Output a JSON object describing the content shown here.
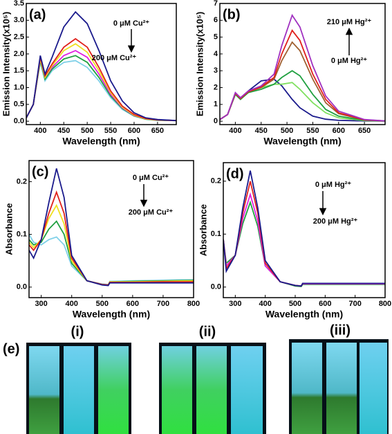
{
  "chart_data": [
    {
      "type": "line",
      "panel_label": "(a)",
      "x_label": "Wavelength (nm)",
      "y_label": "Emission Intensity(x10⁵)",
      "annotations": [
        "0 μM Cu²⁺",
        "200 μM Cu²⁺"
      ],
      "x": [
        370,
        385,
        400,
        410,
        425,
        450,
        475,
        500,
        525,
        550,
        575,
        600,
        625,
        650,
        690
      ],
      "xlim": [
        370,
        690
      ],
      "xticks": [
        400,
        450,
        500,
        550,
        600,
        650
      ],
      "ylim": [
        -0.1,
        3.5
      ],
      "yticks": [
        {
          "value": 0,
          "label": "0.0"
        },
        {
          "value": 0.5,
          "label": "0.5"
        },
        {
          "value": 1,
          "label": "1.0"
        },
        {
          "value": 1.5,
          "label": "1.5"
        },
        {
          "value": 2,
          "label": "2.0"
        },
        {
          "value": 2.5,
          "label": "2.5"
        },
        {
          "value": 3,
          "label": "3.0"
        },
        {
          "value": 3.5,
          "label": "3.5"
        }
      ],
      "series": [
        {
          "color": "#7fd0e8",
          "values": [
            0.1,
            0.5,
            1.75,
            1.2,
            1.5,
            1.75,
            1.8,
            1.6,
            1.2,
            0.7,
            0.35,
            0.15,
            0.06,
            0.03,
            0.02
          ]
        },
        {
          "color": "#20a040",
          "values": [
            0.1,
            0.5,
            1.8,
            1.25,
            1.55,
            1.85,
            1.95,
            1.75,
            1.3,
            0.75,
            0.38,
            0.16,
            0.06,
            0.03,
            0.02
          ]
        },
        {
          "color": "#e020e0",
          "values": [
            0.1,
            0.5,
            1.85,
            1.3,
            1.6,
            1.95,
            2.1,
            1.9,
            1.4,
            0.8,
            0.4,
            0.17,
            0.07,
            0.04,
            0.02
          ]
        },
        {
          "color": "#f0e020",
          "values": [
            0.1,
            0.5,
            1.85,
            1.3,
            1.65,
            2.1,
            2.3,
            2.05,
            1.5,
            0.85,
            0.42,
            0.18,
            0.07,
            0.04,
            0.02
          ]
        },
        {
          "color": "#e0201b",
          "values": [
            0.1,
            0.5,
            1.9,
            1.35,
            1.7,
            2.2,
            2.45,
            2.2,
            1.6,
            0.9,
            0.45,
            0.2,
            0.08,
            0.04,
            0.02
          ]
        },
        {
          "color": "#1a1a8c",
          "values": [
            0.1,
            0.5,
            1.95,
            1.4,
            1.9,
            2.8,
            3.25,
            2.9,
            2.1,
            1.2,
            0.6,
            0.25,
            0.1,
            0.05,
            0.02
          ]
        }
      ]
    },
    {
      "type": "line",
      "panel_label": "(b)",
      "x_label": "Wavelength (nm)",
      "y_label": "Emission Intensity(x10⁵)",
      "annotations": [
        "210 μM Hg²⁺",
        "0 μM Hg²⁺"
      ],
      "x": [
        370,
        385,
        400,
        410,
        425,
        450,
        475,
        490,
        510,
        525,
        550,
        575,
        600,
        650,
        690
      ],
      "xlim": [
        370,
        690
      ],
      "xticks": [
        400,
        450,
        500,
        550,
        600,
        650
      ],
      "ylim": [
        -0.2,
        7
      ],
      "yticks": [
        0,
        1,
        2,
        3,
        4,
        5,
        6,
        7
      ],
      "series": [
        {
          "color": "#1a1a8c",
          "values": [
            0.1,
            0.4,
            1.6,
            1.3,
            1.8,
            2.4,
            2.5,
            2.1,
            1.3,
            0.8,
            0.3,
            0.12,
            0.05,
            0.02,
            0.01
          ]
        },
        {
          "color": "#80e060",
          "values": [
            0.1,
            0.4,
            1.6,
            1.3,
            1.75,
            2.0,
            2.2,
            2.2,
            2.3,
            1.9,
            1.1,
            0.5,
            0.2,
            0.04,
            0.01
          ]
        },
        {
          "color": "#20a040",
          "values": [
            0.1,
            0.4,
            1.6,
            1.3,
            1.7,
            1.9,
            2.2,
            2.6,
            3.0,
            2.7,
            1.6,
            0.7,
            0.3,
            0.05,
            0.01
          ]
        },
        {
          "color": "#a06030",
          "values": [
            0.1,
            0.4,
            1.65,
            1.35,
            1.75,
            2.0,
            2.5,
            3.6,
            4.7,
            4.2,
            2.5,
            1.1,
            0.45,
            0.07,
            0.02
          ]
        },
        {
          "color": "#e0201b",
          "values": [
            0.1,
            0.4,
            1.65,
            1.35,
            1.75,
            2.05,
            2.6,
            4.0,
            5.4,
            4.8,
            2.8,
            1.3,
            0.5,
            0.08,
            0.02
          ]
        },
        {
          "color": "#a030c0",
          "values": [
            0.1,
            0.4,
            1.7,
            1.4,
            1.8,
            2.1,
            2.8,
            4.5,
            6.3,
            5.6,
            3.3,
            1.5,
            0.6,
            0.1,
            0.02
          ]
        }
      ]
    },
    {
      "type": "line",
      "panel_label": "(c)",
      "x_label": "Wavelength (nm)",
      "y_label": "Absorbance",
      "annotations": [
        "0 μM Cu²⁺",
        "200 μM Cu²⁺"
      ],
      "x": [
        260,
        275,
        300,
        325,
        350,
        375,
        400,
        450,
        500,
        520,
        525,
        600,
        700,
        800
      ],
      "xlim": [
        260,
        800
      ],
      "xticks": [
        300,
        400,
        500,
        600,
        700,
        800
      ],
      "ylim": [
        -0.02,
        0.24
      ],
      "yticks": [
        {
          "value": 0,
          "label": "0.0"
        },
        {
          "value": 0.1,
          "label": "0.1"
        },
        {
          "value": 0.2,
          "label": "0.2"
        }
      ],
      "series": [
        {
          "color": "#7fd0e8",
          "values": [
            0.1,
            0.085,
            0.08,
            0.09,
            0.095,
            0.08,
            0.04,
            0.012,
            0.006,
            0.005,
            0.011,
            0.012,
            0.013,
            0.014
          ]
        },
        {
          "color": "#20a040",
          "values": [
            0.09,
            0.08,
            0.085,
            0.11,
            0.125,
            0.1,
            0.045,
            0.012,
            0.005,
            0.004,
            0.01,
            0.011,
            0.012,
            0.013
          ]
        },
        {
          "color": "#f0e020",
          "values": [
            0.085,
            0.075,
            0.09,
            0.13,
            0.155,
            0.12,
            0.05,
            0.012,
            0.005,
            0.004,
            0.01,
            0.01,
            0.011,
            0.012
          ]
        },
        {
          "color": "#e0201b",
          "values": [
            0.08,
            0.07,
            0.09,
            0.14,
            0.18,
            0.14,
            0.055,
            0.012,
            0.005,
            0.004,
            0.009,
            0.009,
            0.01,
            0.01
          ]
        },
        {
          "color": "#1a1a8c",
          "values": [
            0.07,
            0.055,
            0.09,
            0.16,
            0.225,
            0.17,
            0.06,
            0.012,
            0.004,
            0.003,
            0.008,
            0.008,
            0.008,
            0.008
          ]
        }
      ]
    },
    {
      "type": "line",
      "panel_label": "(d)",
      "x_label": "Wavelength (nm)",
      "y_label": "Absorbance",
      "annotations": [
        "0 μM Hg²⁺",
        "200 μM Hg²⁺"
      ],
      "x": [
        260,
        270,
        300,
        325,
        350,
        375,
        400,
        450,
        500,
        520,
        525,
        600,
        700,
        800
      ],
      "xlim": [
        260,
        800
      ],
      "xticks": [
        300,
        400,
        500,
        600,
        700,
        800
      ],
      "ylim": [
        -0.02,
        0.235
      ],
      "yticks": [
        {
          "value": 0,
          "label": "0.0"
        },
        {
          "value": 0.1,
          "label": "0.1"
        },
        {
          "value": 0.2,
          "label": "0.2"
        }
      ],
      "series": [
        {
          "color": "#20a040",
          "values": [
            0.09,
            0.045,
            0.06,
            0.12,
            0.16,
            0.115,
            0.04,
            0.01,
            0.002,
            0.001,
            0.005,
            0.005,
            0.005,
            0.005
          ]
        },
        {
          "color": "#e020e0",
          "values": [
            0.09,
            0.04,
            0.06,
            0.13,
            0.175,
            0.125,
            0.04,
            0.01,
            0.003,
            0.002,
            0.006,
            0.006,
            0.006,
            0.006
          ]
        },
        {
          "color": "#e0201b",
          "values": [
            0.09,
            0.035,
            0.06,
            0.14,
            0.2,
            0.14,
            0.045,
            0.01,
            0.003,
            0.002,
            0.007,
            0.007,
            0.007,
            0.007
          ]
        },
        {
          "color": "#1a1a8c",
          "values": [
            0.09,
            0.03,
            0.06,
            0.15,
            0.22,
            0.15,
            0.05,
            0.01,
            0.003,
            0.002,
            0.007,
            0.007,
            0.007,
            0.007
          ]
        }
      ]
    }
  ],
  "photo_panel": {
    "label": "(e)",
    "groups": [
      "(i)",
      "(ii)",
      "(iii)"
    ]
  }
}
